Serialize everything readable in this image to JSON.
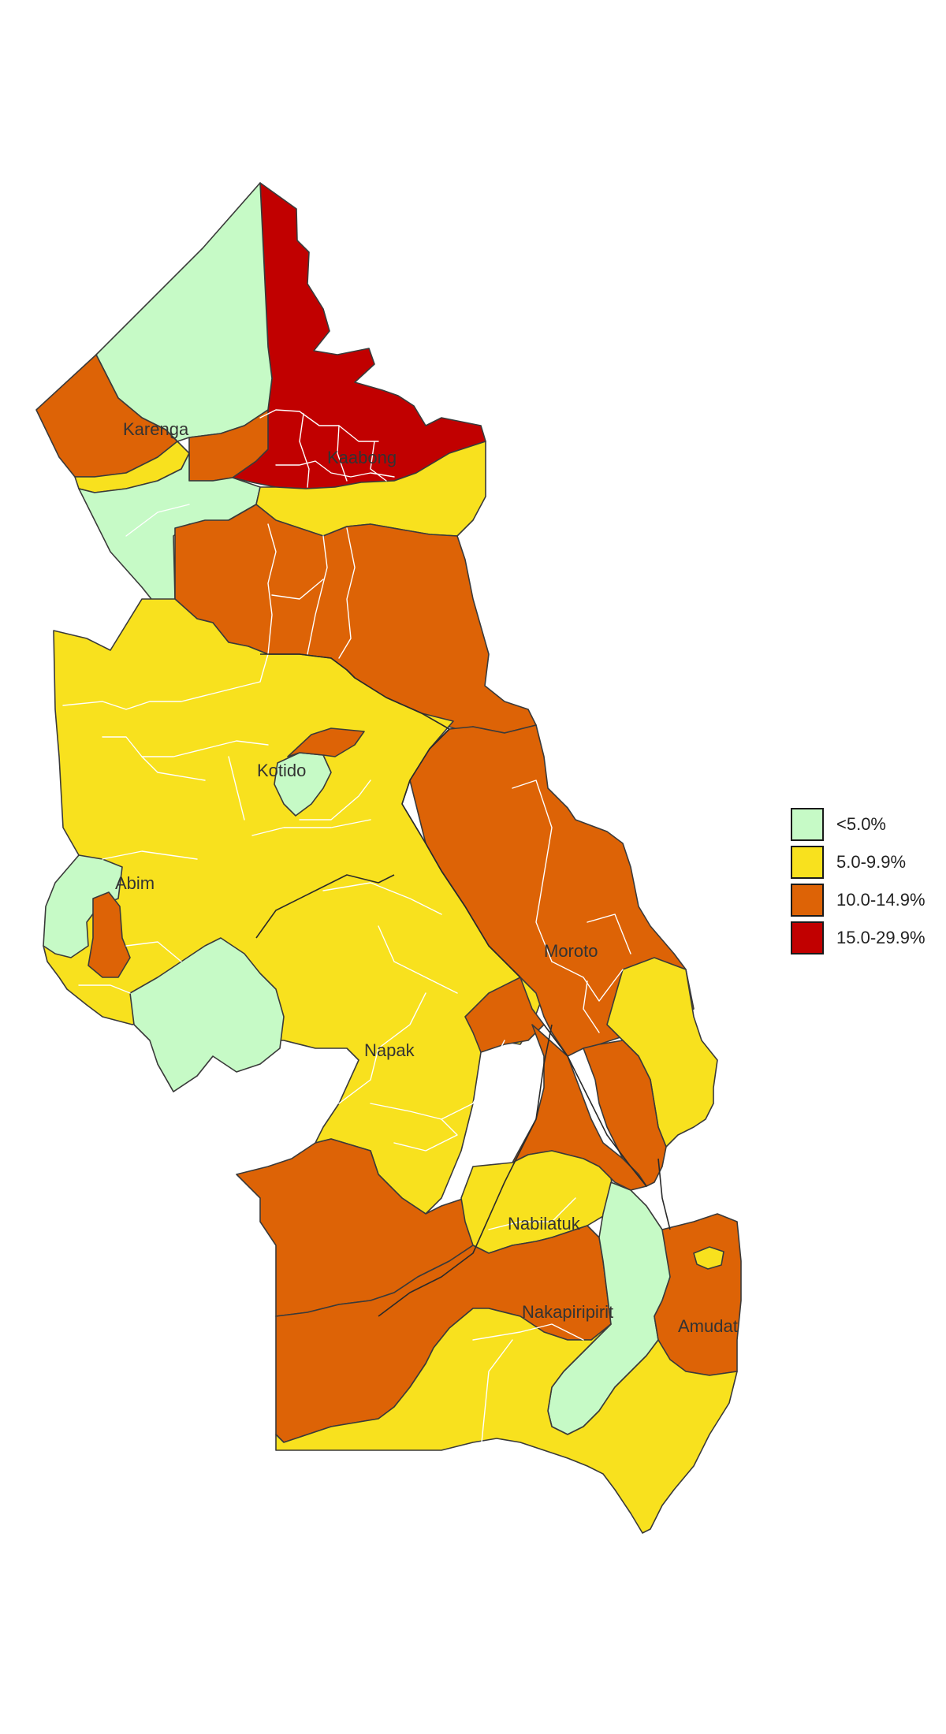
{
  "map": {
    "district_labels": {
      "karenga": "Karenga",
      "kaabong": "Kaabong",
      "kotido": "Kotido",
      "abim": "Abim",
      "moroto": "Moroto",
      "napak": "Napak",
      "nabilatuk": "Nabilatuk",
      "nakapiripirit": "Nakapiripirit",
      "amudat": "Amudat"
    },
    "categories": [
      {
        "label": "<5.0%",
        "color": "#c6fac6"
      },
      {
        "label": "5.0-9.9%",
        "color": "#f8e11e"
      },
      {
        "label": "10.0-14.9%",
        "color": "#dd6306"
      },
      {
        "label": "15.0-29.9%",
        "color": "#c10000"
      }
    ]
  },
  "legend": {
    "items": [
      {
        "label": "<5.0%",
        "color": "#c6fac6"
      },
      {
        "label": "5.0-9.9%",
        "color": "#f8e11e"
      },
      {
        "label": "10.0-14.9%",
        "color": "#dd6306"
      },
      {
        "label": "15.0-29.9%",
        "color": "#c10000"
      }
    ]
  }
}
